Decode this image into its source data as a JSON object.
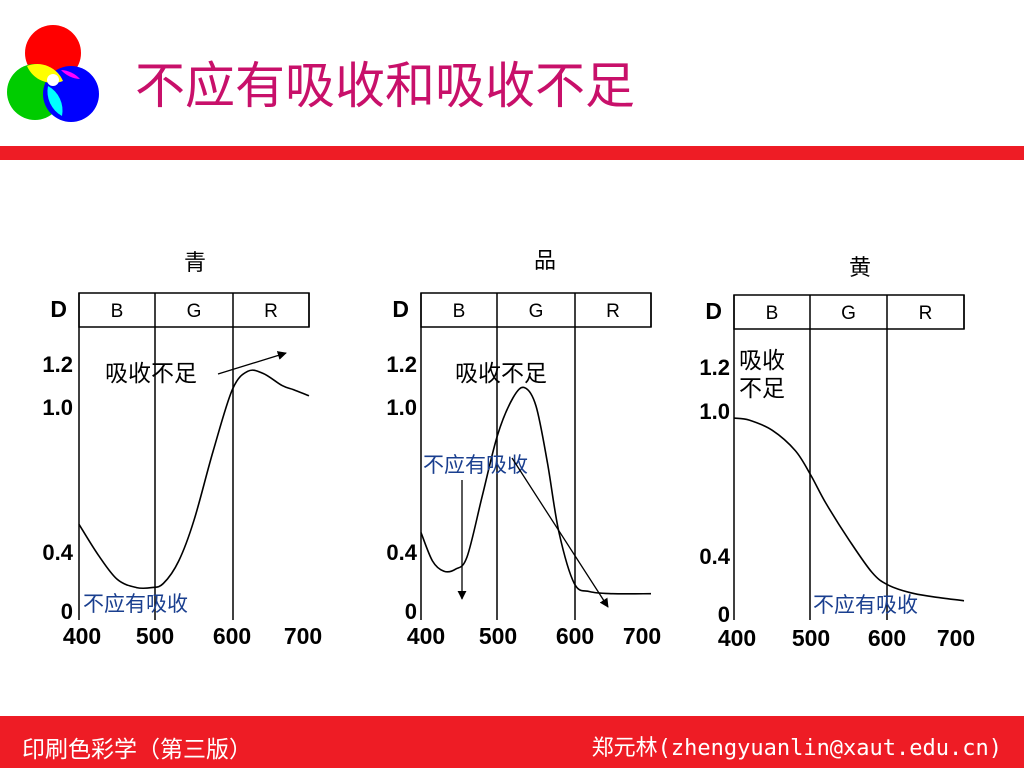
{
  "title": "不应有吸收和吸收不足",
  "footer": {
    "left": "印刷色彩学（第三版）",
    "right": "郑元林(zhengyuanlin@xaut.edu.cn)"
  },
  "colors": {
    "title": "#c8106a",
    "bar": "#ee1c25",
    "annotation_blue": "#1a3f8f",
    "logo_red": "#ff0000",
    "logo_green": "#00cc00",
    "logo_blue": "#0000ff"
  },
  "logo": {
    "icon": "rgb-circles-icon"
  },
  "chart_data": [
    {
      "type": "line",
      "label": "青",
      "ylabel": "D",
      "band_labels": [
        "B",
        "G",
        "R"
      ],
      "x_ticks": [
        "400",
        "500",
        "600",
        "700"
      ],
      "y_ticks": [
        "0",
        "0.4",
        "1.0",
        "1.2"
      ],
      "xlim": [
        400,
        700
      ],
      "ylim": [
        0,
        1.2
      ],
      "annotations": {
        "insufficient": "吸收不足",
        "unwanted": "不应有吸收"
      },
      "series": [
        {
          "x": [
            400,
            425,
            450,
            475,
            495,
            510,
            530,
            550,
            575,
            600,
            620,
            640,
            665,
            680,
            700
          ],
          "y": [
            0.42,
            0.27,
            0.15,
            0.11,
            0.11,
            0.13,
            0.24,
            0.44,
            0.78,
            1.08,
            1.17,
            1.16,
            1.1,
            1.08,
            1.05
          ]
        }
      ]
    },
    {
      "type": "line",
      "label": "品",
      "ylabel": "D",
      "band_labels": [
        "B",
        "G",
        "R"
      ],
      "x_ticks": [
        "400",
        "500",
        "600",
        "700"
      ],
      "y_ticks": [
        "0",
        "0.4",
        "1.0",
        "1.2"
      ],
      "xlim": [
        400,
        700
      ],
      "ylim": [
        0,
        1.2
      ],
      "annotations": {
        "insufficient": "吸收不足",
        "unwanted": "不应有吸收"
      },
      "series": [
        {
          "x": [
            400,
            415,
            430,
            445,
            460,
            480,
            500,
            520,
            535,
            550,
            565,
            580,
            600,
            620,
            650,
            700
          ],
          "y": [
            0.38,
            0.24,
            0.19,
            0.2,
            0.26,
            0.56,
            0.86,
            1.04,
            1.09,
            1.0,
            0.72,
            0.38,
            0.13,
            0.09,
            0.08,
            0.08
          ]
        }
      ]
    },
    {
      "type": "line",
      "label": "黄",
      "ylabel": "D",
      "band_labels": [
        "B",
        "G",
        "R"
      ],
      "x_ticks": [
        "400",
        "500",
        "600",
        "700"
      ],
      "y_ticks": [
        "0",
        "0.4",
        "1.0",
        "1.2"
      ],
      "xlim": [
        400,
        700
      ],
      "ylim": [
        0,
        1.2
      ],
      "annotations": {
        "insufficient": "吸收\n不足",
        "unwanted": "不应有吸收"
      },
      "series": [
        {
          "x": [
            400,
            420,
            450,
            480,
            500,
            520,
            550,
            580,
            600,
            630,
            660,
            700
          ],
          "y": [
            0.96,
            0.95,
            0.9,
            0.8,
            0.68,
            0.54,
            0.36,
            0.2,
            0.14,
            0.1,
            0.08,
            0.06
          ]
        }
      ]
    }
  ]
}
